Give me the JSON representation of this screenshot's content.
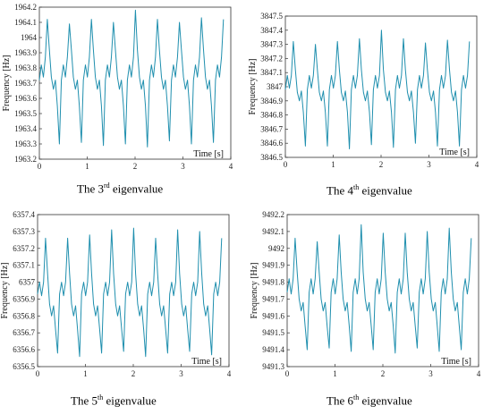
{
  "series_color": "#1f8fae",
  "chart_data": [
    {
      "type": "line",
      "title": "",
      "xlabel": "Time [s]",
      "ylabel": "Frequency [Hz]",
      "xlim": [
        0,
        4
      ],
      "ylim": [
        1963.2,
        1964.2
      ],
      "xticks": [
        "0",
        "1",
        "2",
        "3",
        "4"
      ],
      "yticks": [
        "1963.2",
        "1963.3",
        "1963.4",
        "1963.5",
        "1963.6",
        "1963.7",
        "1963.8",
        "1963.9",
        "1964",
        "1964.1",
        "1964.2"
      ],
      "caption": {
        "pre": "The 3",
        "sup": "rd",
        "post": " eigenvalue"
      },
      "series": [
        {
          "period_s": 0.46,
          "x_end": 3.85,
          "pattern": [
            1963.72,
            1963.82,
            1963.74,
            1963.87,
            1964.12,
            1963.92,
            1963.74,
            1963.66,
            1963.72,
            1963.55,
            1963.3
          ],
          "peak_boost": [
            0.0,
            -0.03,
            0.0,
            -0.02,
            0.06,
            0.0,
            -0.02,
            0.01
          ],
          "valley_shift": [
            0.0,
            0.01,
            -0.01,
            0.0,
            -0.02,
            0.02,
            0.0,
            0.01
          ]
        }
      ]
    },
    {
      "type": "line",
      "title": "",
      "xlabel": "Time [s]",
      "ylabel": "Frequency [Hz]",
      "xlim": [
        0,
        4
      ],
      "ylim": [
        3846.5,
        3847.5
      ],
      "xticks": [
        "0",
        "1",
        "2",
        "3",
        "4"
      ],
      "yticks": [
        "3846.5",
        "3846.6",
        "3846.7",
        "3846.8",
        "3846.9",
        "3847",
        "3847.1",
        "3847.2",
        "3847.3",
        "3847.4",
        "3847.5"
      ],
      "caption": {
        "pre": "The 4",
        "sup": "th",
        "post": " eigenvalue"
      },
      "series": [
        {
          "period_s": 0.46,
          "x_end": 3.85,
          "pattern": [
            3846.98,
            3847.08,
            3846.99,
            3847.08,
            3847.32,
            3847.12,
            3846.96,
            3846.9,
            3846.97,
            3846.82,
            3846.58
          ],
          "peak_boost": [
            0.0,
            -0.02,
            0.0,
            0.02,
            0.08,
            0.02,
            -0.01,
            0.01
          ],
          "valley_shift": [
            0.0,
            0.0,
            -0.02,
            0.01,
            -0.01,
            0.02,
            0.0,
            0.0
          ]
        }
      ]
    },
    {
      "type": "line",
      "title": "",
      "xlabel": "Time [s]",
      "ylabel": "Frequency [Hz]",
      "xlim": [
        0,
        4
      ],
      "ylim": [
        6356.5,
        6357.4
      ],
      "xticks": [
        "0",
        "1",
        "2",
        "3",
        "4"
      ],
      "yticks": [
        "6356.5",
        "6356.6",
        "6356.7",
        "6356.8",
        "6356.9",
        "6357",
        "6357.1",
        "6357.2",
        "6357.3",
        "6357.4"
      ],
      "caption": {
        "pre": "The 5",
        "sup": "th",
        "post": " eigenvalue"
      },
      "series": [
        {
          "period_s": 0.46,
          "x_end": 3.85,
          "pattern": [
            6356.93,
            6357.0,
            6356.92,
            6357.0,
            6357.26,
            6357.05,
            6356.87,
            6356.8,
            6356.86,
            6356.72,
            6356.58
          ],
          "peak_boost": [
            0.0,
            0.0,
            0.02,
            0.05,
            0.06,
            0.0,
            0.05,
            0.04
          ],
          "valley_shift": [
            0.0,
            -0.02,
            0.0,
            0.01,
            -0.02,
            0.0,
            0.01,
            -0.01
          ]
        }
      ]
    },
    {
      "type": "line",
      "title": "",
      "xlabel": "Time [s]",
      "ylabel": "Frequency [Hz]",
      "xlim": [
        0,
        4
      ],
      "ylim": [
        9491.3,
        9492.2
      ],
      "xticks": [
        "0",
        "1",
        "2",
        "3",
        "4"
      ],
      "yticks": [
        "9491.3",
        "9491.4",
        "9491.5",
        "9491.6",
        "9491.7",
        "9491.8",
        "9491.9",
        "9492",
        "9492.1",
        "9492.2"
      ],
      "caption": {
        "pre": "The 6",
        "sup": "th",
        "post": " eigenvalue"
      },
      "series": [
        {
          "period_s": 0.46,
          "x_end": 3.85,
          "pattern": [
            9491.74,
            9491.82,
            9491.73,
            9491.82,
            9492.06,
            9491.86,
            9491.7,
            9491.63,
            9491.68,
            9491.54,
            9491.4
          ],
          "peak_boost": [
            0.0,
            -0.02,
            0.02,
            0.08,
            0.03,
            0.03,
            0.04,
            0.06
          ],
          "valley_shift": [
            0.0,
            0.01,
            -0.01,
            0.0,
            -0.02,
            0.01,
            -0.01,
            0.0
          ]
        }
      ]
    }
  ]
}
